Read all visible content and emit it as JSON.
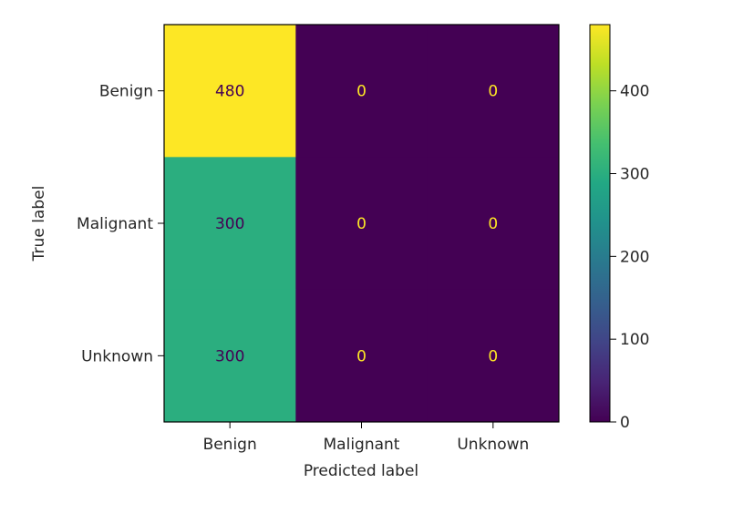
{
  "chart_data": {
    "type": "heatmap",
    "title": "",
    "xlabel": "Predicted label",
    "ylabel": "True label",
    "x_categories": [
      "Benign",
      "Malignant",
      "Unknown"
    ],
    "y_categories": [
      "Benign",
      "Malignant",
      "Unknown"
    ],
    "values": [
      [
        480,
        0,
        0
      ],
      [
        300,
        0,
        0
      ],
      [
        300,
        0,
        0
      ]
    ],
    "cell_labels": [
      [
        "480",
        "0",
        "0"
      ],
      [
        "300",
        "0",
        "0"
      ],
      [
        "300",
        "0",
        "0"
      ]
    ],
    "colormap": "viridis",
    "vmin": 0,
    "vmax": 480,
    "colorbar_ticks": [
      0,
      100,
      200,
      300,
      400
    ],
    "colorbar_tick_labels": [
      "0",
      "100",
      "200",
      "300",
      "400"
    ],
    "colors": {
      "low": "#440154",
      "mid": "#2ab07f",
      "high": "#fde725",
      "label_on_dark": "#fde725",
      "label_on_light": "#440154"
    }
  }
}
